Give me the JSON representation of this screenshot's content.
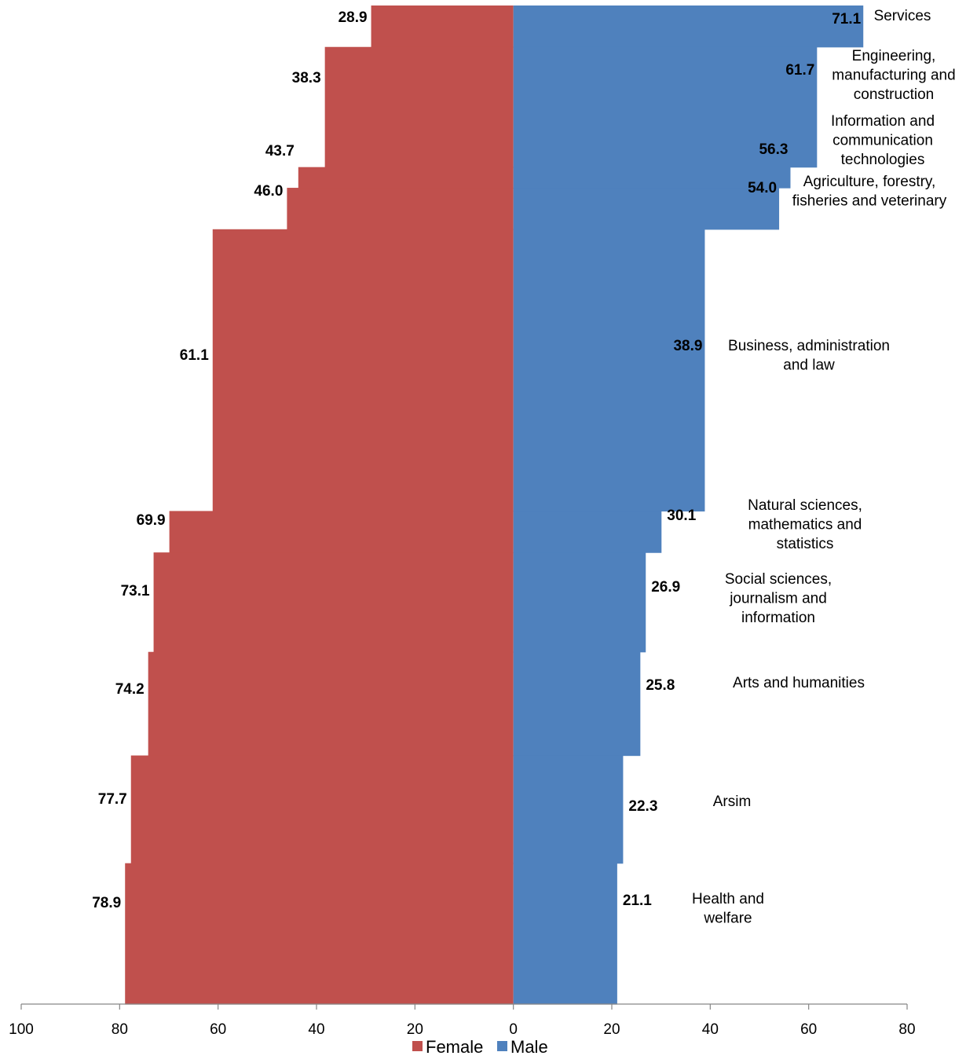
{
  "chart_data": {
    "type": "area",
    "orientation": "horizontal-diverging",
    "categories": [
      "Services",
      "Engineering, manufacturing and construction",
      "Information and communication technologies",
      "Agriculture, forestry, fisheries and veterinary",
      "Business, administration and law",
      "Natural sciences, mathematics and statistics",
      "Social sciences, journalism and information",
      "Arts and humanities",
      "Arsim",
      "Health and welfare"
    ],
    "category_lines": [
      [
        "Services"
      ],
      [
        "Engineering,",
        "manufacturing and",
        "construction"
      ],
      [
        "Information and",
        "communication",
        "technologies"
      ],
      [
        "Agriculture, forestry,",
        "fisheries and veterinary"
      ],
      [
        "Business, administration",
        "and law"
      ],
      [
        "Natural sciences,",
        "mathematics and",
        "statistics"
      ],
      [
        "Social sciences,",
        "journalism and",
        "information"
      ],
      [
        "Arts and humanities"
      ],
      [
        "Arsim"
      ],
      [
        "Health and",
        "welfare"
      ]
    ],
    "category_weights": [
      1,
      2.9,
      0.5,
      1,
      6.8,
      1,
      2.4,
      2.5,
      2.6,
      3.4
    ],
    "series": [
      {
        "name": "Female",
        "color": "#C0504D",
        "values": [
          28.9,
          38.3,
          43.7,
          46.0,
          61.1,
          69.9,
          73.1,
          74.2,
          77.7,
          78.9
        ],
        "labels": [
          "28.9",
          "38.3",
          "43.7",
          "46.0",
          "61.1",
          "69.9",
          "73.1",
          "74.2",
          "77.7",
          "78.9"
        ]
      },
      {
        "name": "Male",
        "color": "#4F81BD",
        "values": [
          71.1,
          61.7,
          56.3,
          54.0,
          38.9,
          30.1,
          26.9,
          25.8,
          22.3,
          21.1
        ],
        "labels": [
          "71.1",
          "61.7",
          "56.3",
          "54.0",
          "38.9",
          "30.1",
          "26.9",
          "25.8",
          "22.3",
          "21.1"
        ]
      }
    ],
    "xlim": [
      -100,
      80
    ],
    "x_ticks": [
      -100,
      -80,
      -60,
      -40,
      -20,
      0,
      20,
      40,
      60,
      80
    ],
    "x_tick_labels": [
      "100",
      "80",
      "60",
      "40",
      "20",
      "0",
      "20",
      "40",
      "60",
      "80"
    ],
    "legend": {
      "position": "bottom",
      "items": [
        "Female",
        "Male"
      ]
    },
    "grid": false,
    "title": "",
    "xlabel": "",
    "ylabel": ""
  }
}
